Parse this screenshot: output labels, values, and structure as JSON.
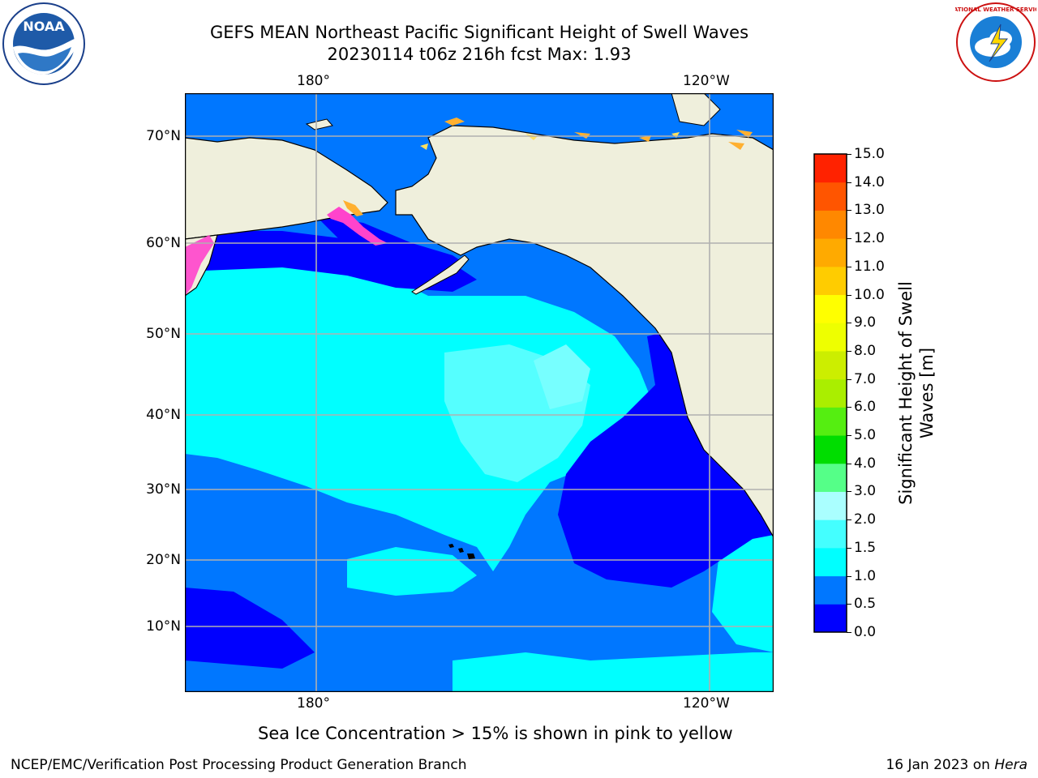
{
  "header": {
    "title_line1": "GEFS MEAN Northeast Pacific Significant Height of Swell Waves",
    "title_line2": "20230114 t06z 216h fcst   Max: 1.93"
  },
  "logos": {
    "left": "noaa-logo",
    "left_text": "NOAA",
    "right": "nws-logo",
    "right_text": "NATIONAL WEATHER SERVICE"
  },
  "map": {
    "lon_labels": [
      "180°",
      "120°W"
    ],
    "lat_labels": [
      "70°N",
      "60°N",
      "50°N",
      "40°N",
      "30°N",
      "20°N",
      "10°N"
    ],
    "colors": {
      "land": "#efefdc",
      "coast": "#000000",
      "grid": "#b0b0b0",
      "ice_pink": "#ff44cc",
      "ice_orange": "#ffb030",
      "ice_yellow": "#ffe060"
    }
  },
  "colorbar": {
    "title": "Significant Height of Swell Waves [m]",
    "ticks": [
      "15.0",
      "14.0",
      "13.0",
      "12.0",
      "11.0",
      "10.0",
      "9.0",
      "8.0",
      "7.0",
      "6.0",
      "5.0",
      "4.0",
      "3.0",
      "2.0",
      "1.5",
      "1.0",
      "0.5",
      "0.0"
    ],
    "colors_bottom_to_top": [
      "#0000ff",
      "#0077ff",
      "#00ffff",
      "#44ffff",
      "#aaffff",
      "#55ff88",
      "#00dd00",
      "#55ee11",
      "#aaee00",
      "#ccee00",
      "#eeff00",
      "#ffff00",
      "#ffcc00",
      "#ffaa00",
      "#ff8800",
      "#ff5500",
      "#ff2200"
    ]
  },
  "caption": "Sea Ice Concentration > 15% is shown in pink to yellow",
  "footer": {
    "left": "NCEP/EMC/Verification Post Processing Product Generation Branch",
    "right_prefix": "16 Jan 2023 on ",
    "right_italic": "Hera"
  }
}
